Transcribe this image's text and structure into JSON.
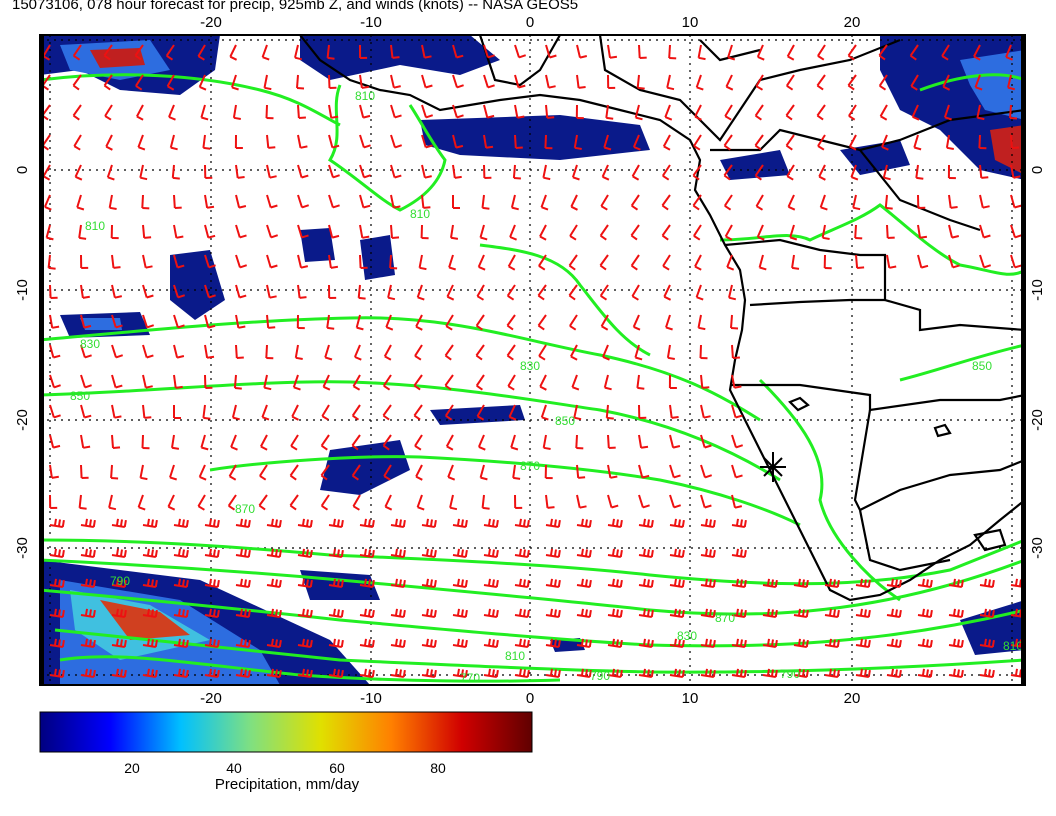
{
  "title": "15073106, 078 hour forecast for precip, 925mb Z, and winds (knots) -- NASA GEOS5",
  "map": {
    "lon_ticks": [
      "-20",
      "-10",
      "0",
      "10",
      "20"
    ],
    "lat_ticks": [
      "0",
      "-10",
      "-20",
      "-30"
    ],
    "contour_labels": [
      "810",
      "810",
      "810",
      "830",
      "850",
      "850",
      "870",
      "870",
      "830",
      "790",
      "770",
      "810",
      "830",
      "790",
      "870",
      "850",
      "810",
      "790"
    ],
    "colors": {
      "contour": "#22ee22",
      "barb": "#ee1111",
      "coast": "#000000",
      "precip_low": "#000070",
      "precip_mid": "#2050d0"
    }
  },
  "colorbar": {
    "ticks": [
      "20",
      "40",
      "60",
      "80"
    ],
    "label": "Precipitation, mm/day",
    "colormap": [
      "#000080",
      "#0000ff",
      "#00c0ff",
      "#80e080",
      "#e0e000",
      "#ff8000",
      "#d00000",
      "#600000"
    ]
  }
}
